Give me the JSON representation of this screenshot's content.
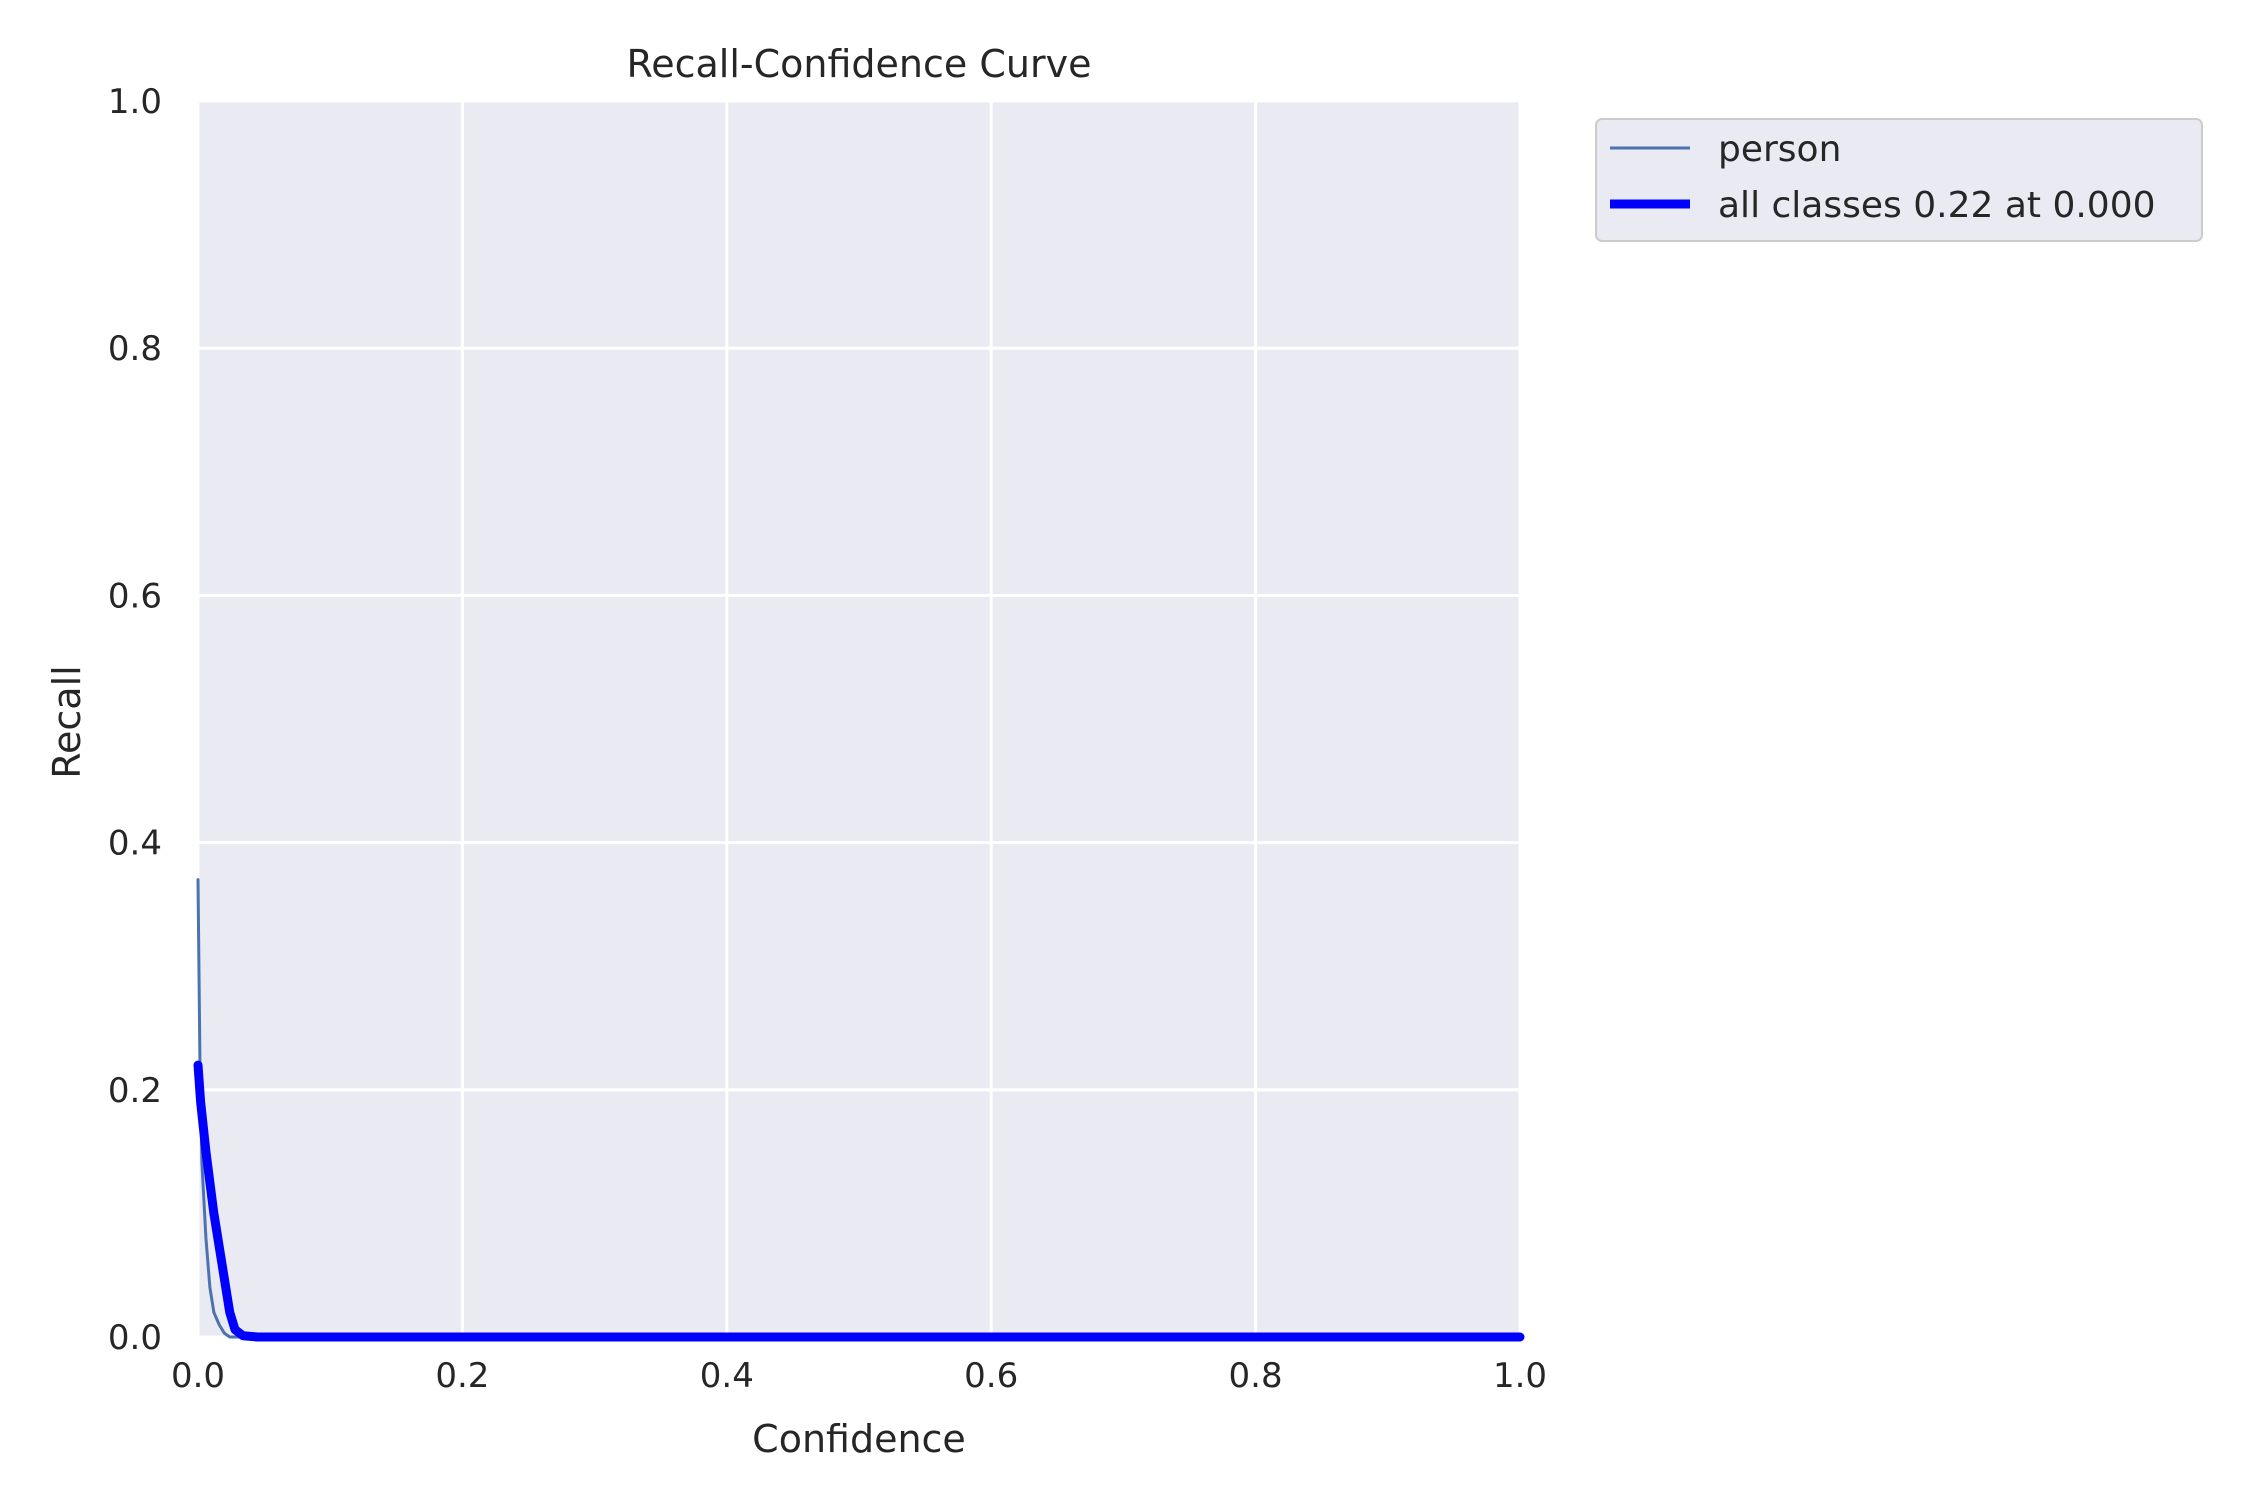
{
  "chart_data": {
    "type": "line",
    "title": "Recall-Confidence Curve",
    "xlabel": "Confidence",
    "ylabel": "Recall",
    "xlim": [
      0,
      1
    ],
    "ylim": [
      0,
      1
    ],
    "x_ticks": [
      "0.0",
      "0.2",
      "0.4",
      "0.6",
      "0.8",
      "1.0"
    ],
    "y_ticks": [
      "0.0",
      "0.2",
      "0.4",
      "0.6",
      "0.8",
      "1.0"
    ],
    "grid": true,
    "legend_position": "outside-top-right",
    "series": [
      {
        "name": "person",
        "color": "#4c72b0",
        "line_width": "thin",
        "points": [
          [
            0.0,
            0.37
          ],
          [
            0.0015,
            0.22
          ],
          [
            0.003,
            0.14
          ],
          [
            0.006,
            0.08
          ],
          [
            0.009,
            0.04
          ],
          [
            0.012,
            0.02
          ],
          [
            0.016,
            0.01
          ],
          [
            0.02,
            0.003
          ],
          [
            0.024,
            0.0
          ],
          [
            1.0,
            0.0
          ]
        ]
      },
      {
        "name": "all classes 0.22 at 0.000",
        "color": "#0000ff",
        "line_width": "thick",
        "points": [
          [
            0.0,
            0.22
          ],
          [
            0.002,
            0.19
          ],
          [
            0.006,
            0.15
          ],
          [
            0.012,
            0.1
          ],
          [
            0.018,
            0.06
          ],
          [
            0.024,
            0.02
          ],
          [
            0.028,
            0.006
          ],
          [
            0.034,
            0.001
          ],
          [
            0.045,
            0.0
          ],
          [
            1.0,
            0.0
          ]
        ]
      }
    ]
  }
}
